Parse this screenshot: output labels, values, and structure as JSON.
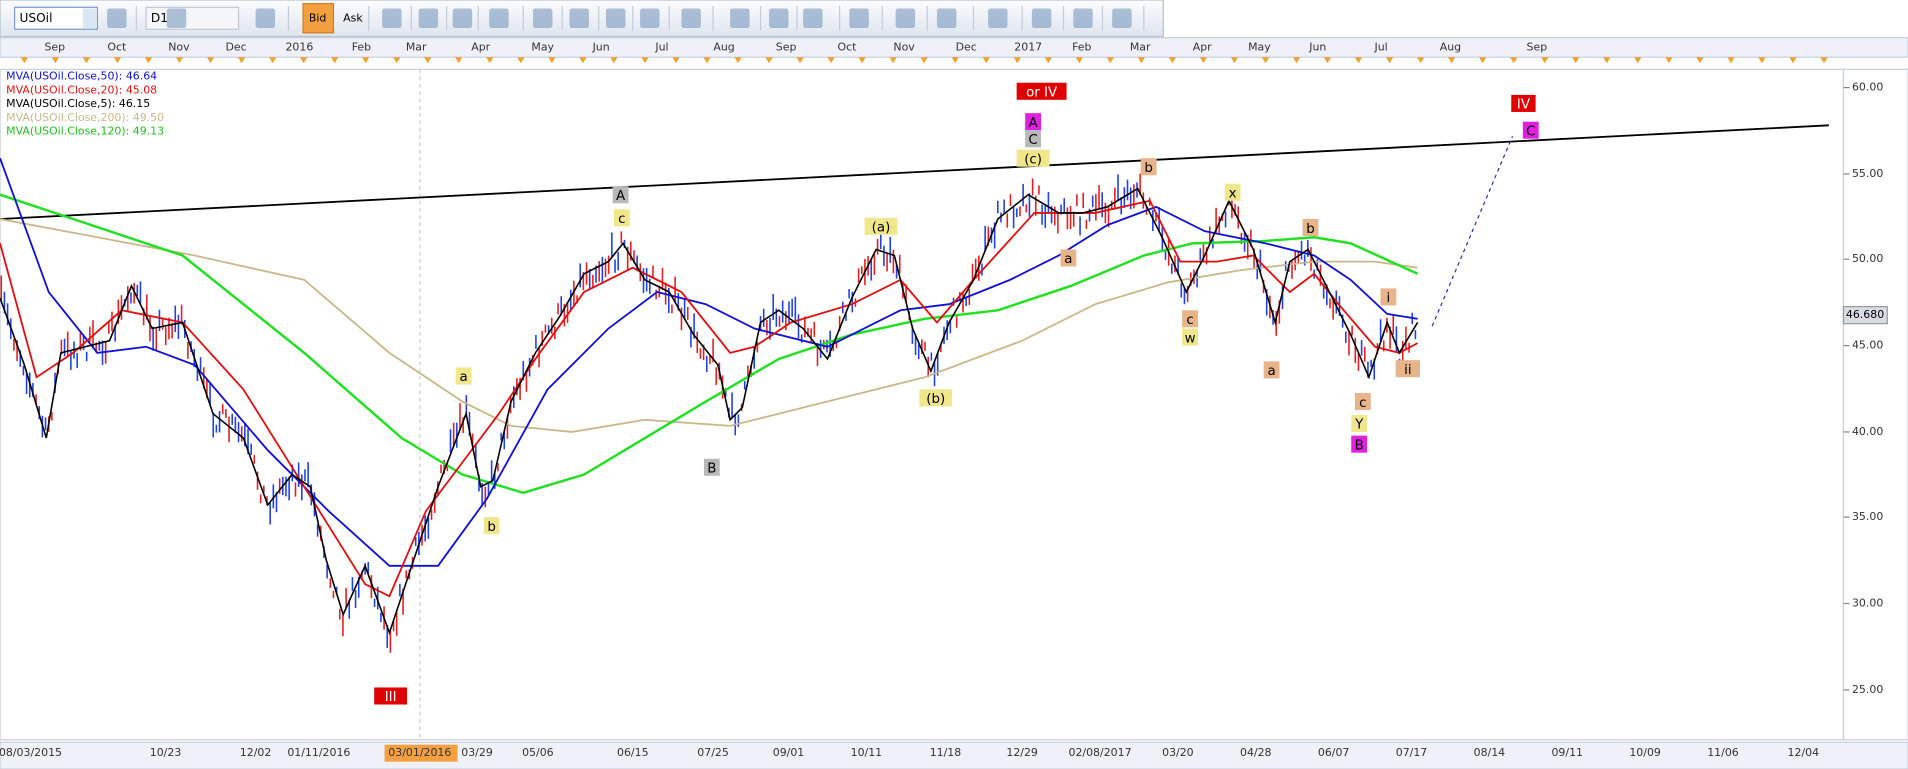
{
  "toolbar": {
    "symbol": "USOil",
    "timeframe": "D1",
    "buttons": [
      "Bid",
      "Ask"
    ]
  },
  "legend": [
    "MVA(USOil.Close,50): 46.64",
    "MVA(USOil.Close,20): 45.08",
    "MVA(USOil.Close,5): 46.15",
    "MVA(USOil.Close,200): 49.50",
    "MVA(USOil.Close,120): 49.13"
  ],
  "month_axis": [
    "Sep",
    "Oct",
    "Nov",
    "Dec",
    "2016",
    "Feb",
    "Mar",
    "Apr",
    "May",
    "Jun",
    "Jul",
    "Aug",
    "Sep",
    "Oct",
    "Nov",
    "Dec",
    "2017",
    "Feb",
    "Mar",
    "Apr",
    "May",
    "Jun",
    "Jul",
    "Aug",
    "Sep"
  ],
  "price_axis": [
    "60.00",
    "55.00",
    "50.00",
    "45.00",
    "40.00",
    "35.00",
    "30.00",
    "25.00"
  ],
  "current_price": "46.680",
  "date_axis": [
    "08/03/2015",
    "10/23",
    "12/02",
    "01/11/2016",
    "03/01/2016",
    "03/29",
    "05/06",
    "06/15",
    "07/25",
    "09/01",
    "10/11",
    "11/18",
    "12/29",
    "02/08/2017",
    "03/20",
    "04/28",
    "06/07",
    "07/17",
    "08/14",
    "09/11",
    "10/09",
    "11/06",
    "12/04"
  ],
  "wave_labels": [
    "or IV",
    "A",
    "C",
    "(c)",
    "b",
    "A",
    "c",
    "(a)",
    "x",
    "b",
    "a",
    "i",
    "c",
    "w",
    "a",
    "a",
    "ii",
    "(b)",
    "c",
    "Y",
    "B",
    "B",
    "b",
    "III",
    "IV",
    "C"
  ]
}
